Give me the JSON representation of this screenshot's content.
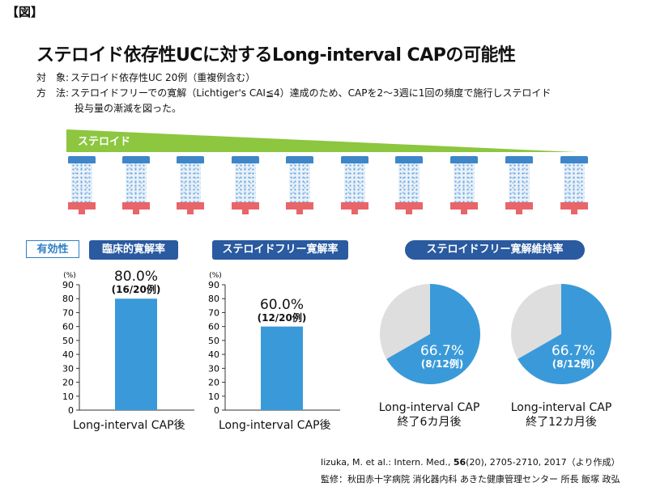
{
  "figure_label": "【図】",
  "title": "ステロイド依存性UCに対するLong-interval CAPの可能性",
  "meta": {
    "subject_key": "対　象:",
    "subject_value": "ステロイド依存性UC 20例（重複例含む）",
    "method_key": "方　法:",
    "method_value": "ステロイドフリーでの寛解（Lichtiger's CAI≦4）達成のため、CAPを2〜3週に1回の頻度で施行しステロイド",
    "method_value_cont": "投与量の漸減を図った。"
  },
  "steroid_label": "ステロイド",
  "efficacy_tag": "有効性",
  "colors": {
    "accent_blue": "#2a5aa0",
    "bar_blue": "#3a9ad9",
    "pie_gray": "#dedede",
    "green": "#8dc63f",
    "red": "#e8656a"
  },
  "chart_data": [
    {
      "type": "bar",
      "title": "臨床的寛解率",
      "ylabel": "(%)",
      "ylim": [
        0,
        90
      ],
      "yticks": [
        0,
        10,
        20,
        30,
        40,
        50,
        60,
        70,
        80,
        90
      ],
      "categories": [
        "Long-interval CAP後"
      ],
      "values": [
        80.0
      ],
      "value_label": "80.0%",
      "count_label": "(16/20例)"
    },
    {
      "type": "bar",
      "title": "ステロイドフリー寛解率",
      "ylabel": "(%)",
      "ylim": [
        0,
        90
      ],
      "yticks": [
        0,
        10,
        20,
        30,
        40,
        50,
        60,
        70,
        80,
        90
      ],
      "categories": [
        "Long-interval CAP後"
      ],
      "values": [
        60.0
      ],
      "value_label": "60.0%",
      "count_label": "(12/20例)"
    },
    {
      "type": "pie",
      "title": "ステロイドフリー寛解維持率",
      "pies": [
        {
          "caption_line1": "Long-interval CAP",
          "caption_line2": "終了6カ月後",
          "value": 66.7,
          "value_label": "66.7%",
          "count_label": "(8/12例)"
        },
        {
          "caption_line1": "Long-interval CAP",
          "caption_line2": "終了12カ月後",
          "value": 66.7,
          "value_label": "66.7%",
          "count_label": "(8/12例)"
        }
      ]
    }
  ],
  "citation": {
    "prefix": "Iizuka, M. et al.: Intern. Med., ",
    "volume": "56",
    "suffix": "(20), 2705-2710, 2017（より作成）"
  },
  "supervisor": "監修：秋田赤十字病院 消化器内科 あきた健康管理センター 所長 飯塚 政弘"
}
